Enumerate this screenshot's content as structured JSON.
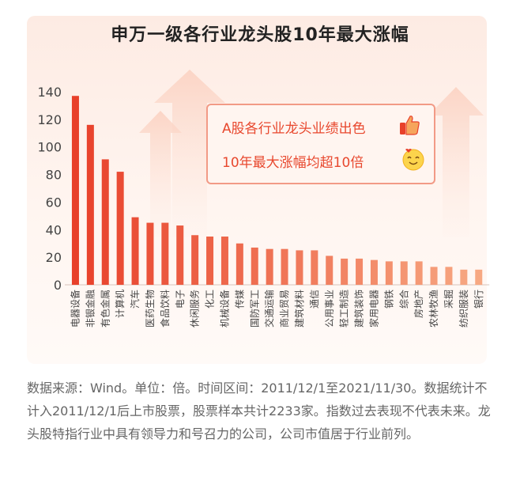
{
  "title": "申万一级各行业龙头股10年最大涨幅",
  "callout": {
    "line1": "A股各行业龙头业绩出色",
    "line2": "10年最大涨幅均超10倍",
    "icons": [
      "thumbs-up-icon",
      "smile-face-icon"
    ]
  },
  "footnote": "数据来源：Wind。单位：倍。时间区间：2011/12/1至2021/11/30。数据统计不计入2011/12/1后上市股票，股票样本共计2233家。指数过去表现不代表未来。龙头股特指行业中具有领导力和号召力的公司，公司市值居于行业前列。",
  "colors": {
    "bar_top": "#e8402a",
    "bar_bottom": "#f7a07a",
    "accent": "#e8482e"
  },
  "chart_data": {
    "type": "bar",
    "title": "申万一级各行业龙头股10年最大涨幅",
    "categories": [
      "电器设备",
      "非银金融",
      "有色金属",
      "计算机",
      "汽车",
      "医药生物",
      "食品饮料",
      "电子",
      "休闲服务",
      "化工",
      "机械设备",
      "传媒",
      "国防军工",
      "交通运输",
      "商业贸易",
      "建筑材料",
      "通信",
      "公用事业",
      "轻工制造",
      "建筑装饰",
      "家用电器",
      "钢铁",
      "综合",
      "房地产",
      "农林牧渔",
      "采掘",
      "纺织服装",
      "银行"
    ],
    "values": [
      137,
      116,
      91,
      82,
      49,
      45,
      45,
      43,
      36,
      35,
      35,
      30,
      27,
      26,
      26,
      25,
      25,
      21,
      19,
      19,
      18,
      17,
      17,
      17,
      13,
      13,
      11,
      11
    ],
    "ylim": [
      0,
      140
    ],
    "yticks": [
      0,
      20,
      40,
      60,
      80,
      100,
      120,
      140
    ],
    "grid": false,
    "legend": "none"
  }
}
